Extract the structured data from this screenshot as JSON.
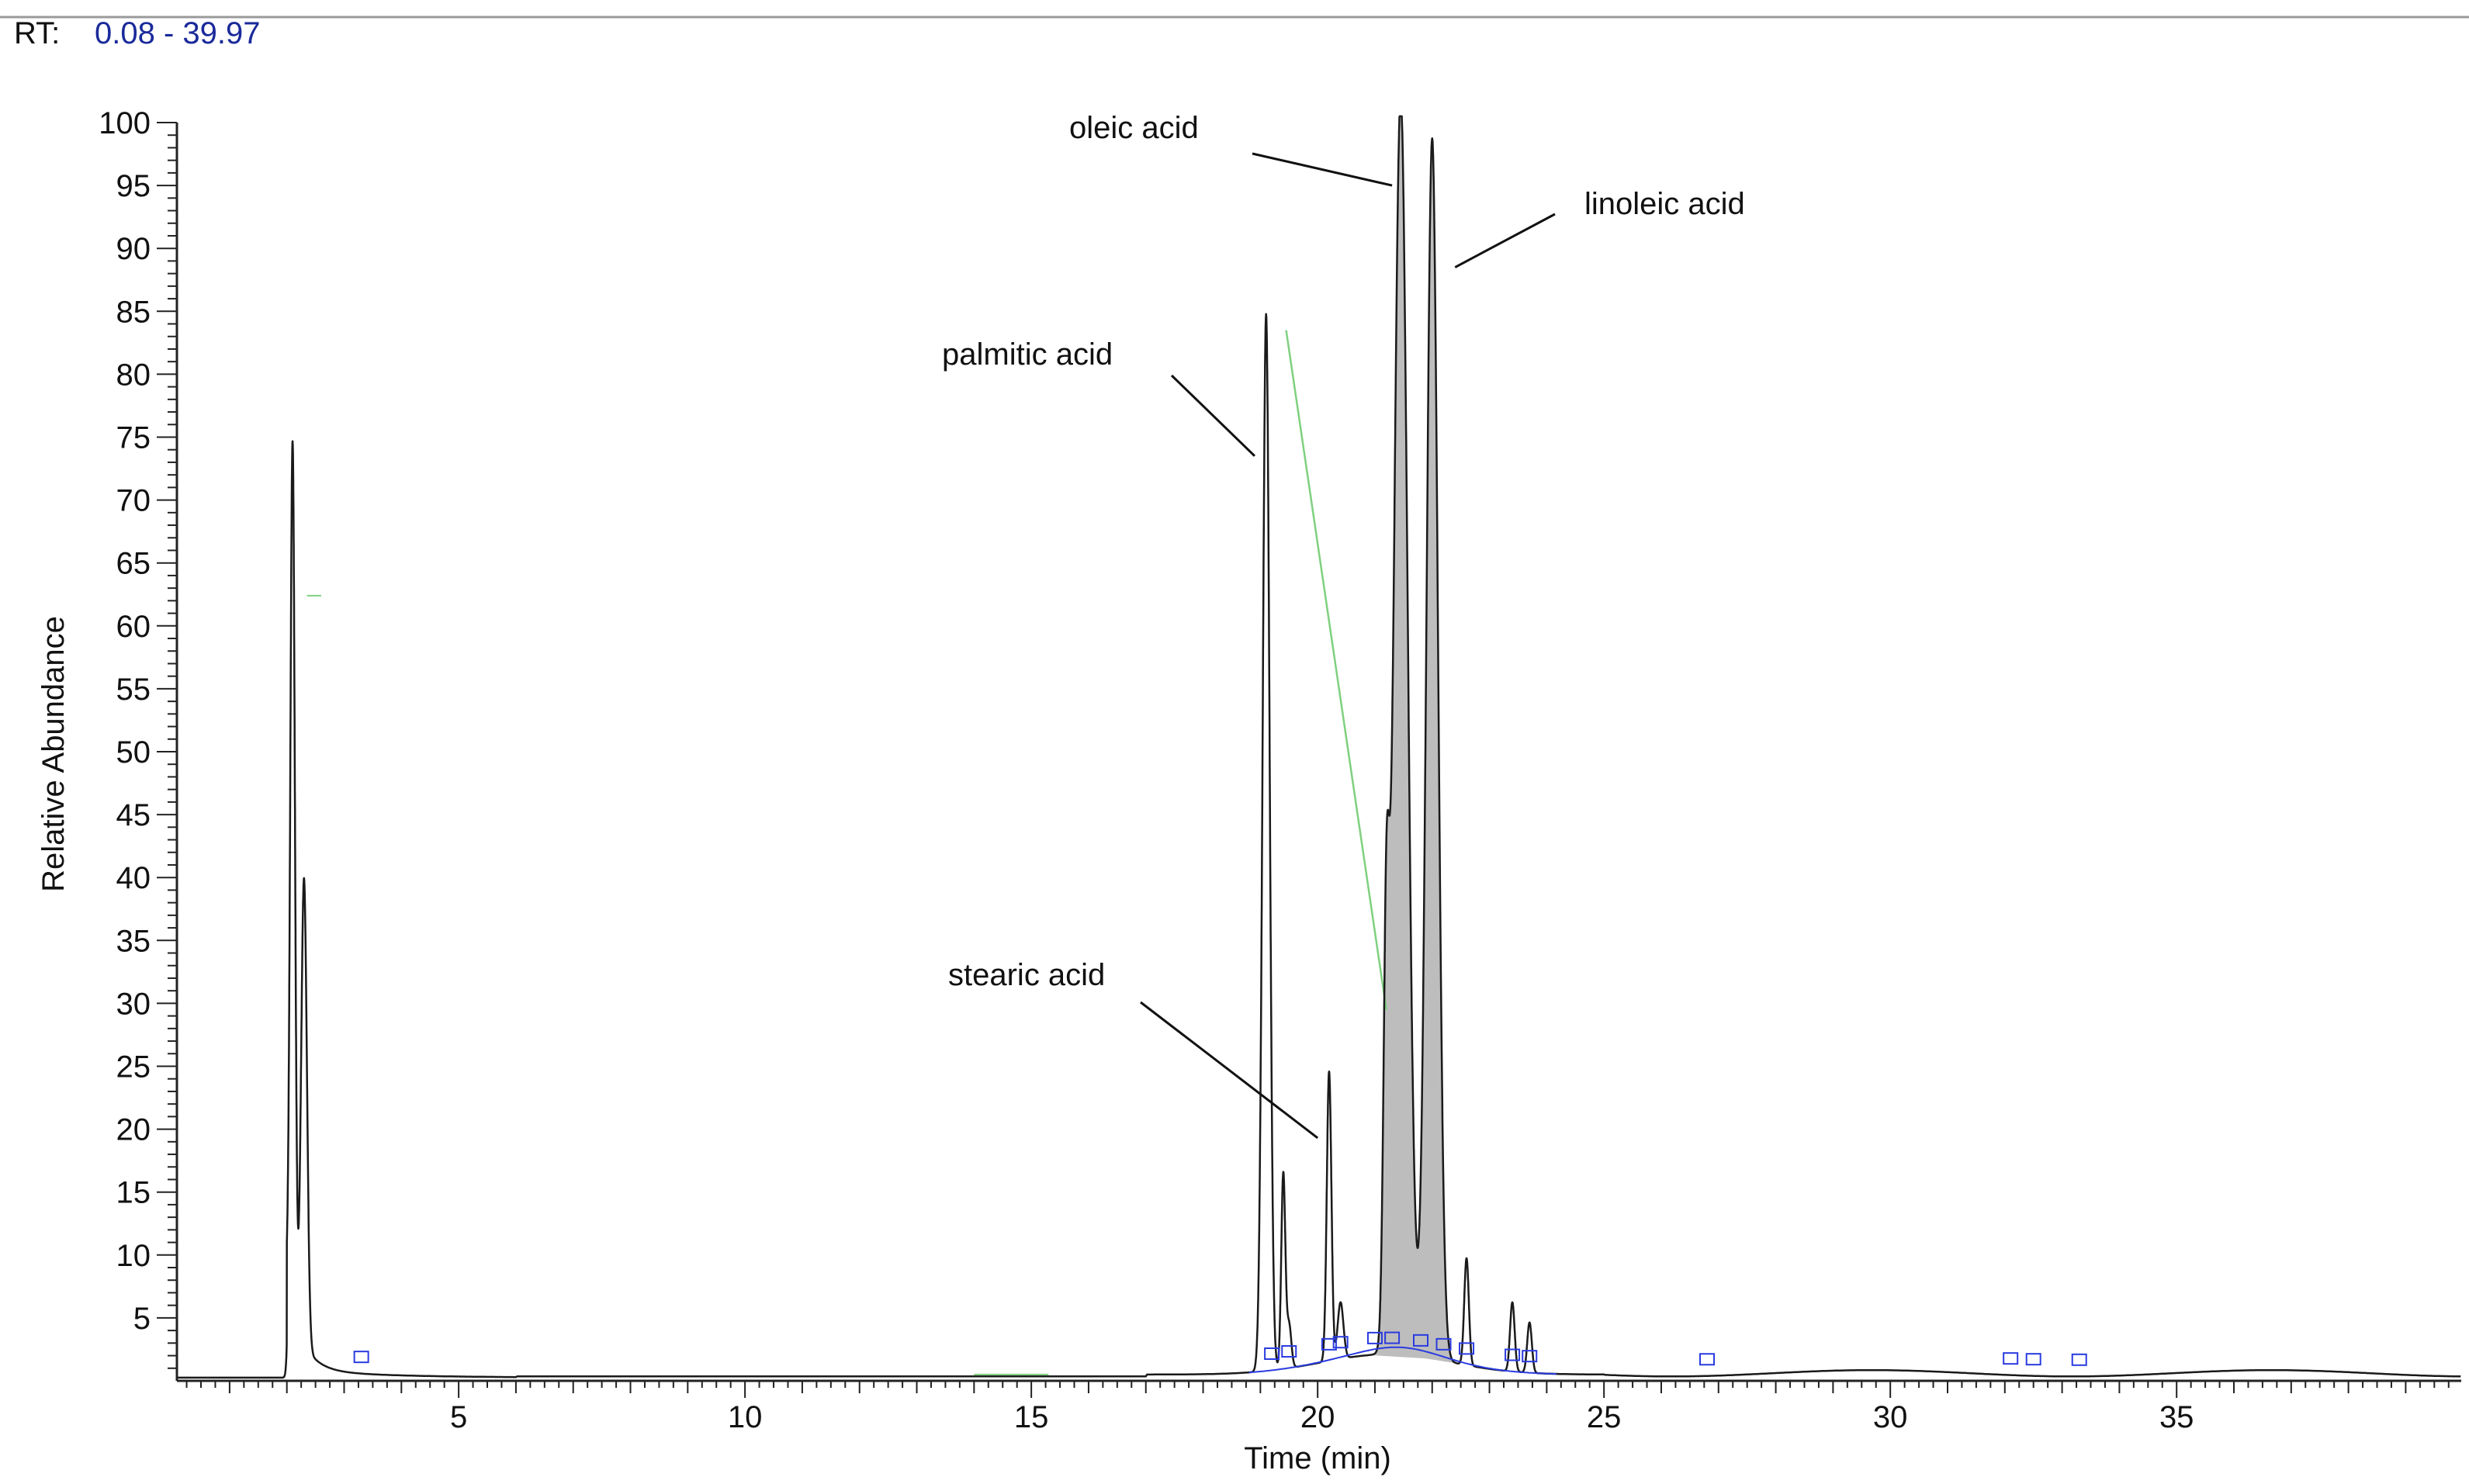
{
  "header": {
    "rt_label": "RT:",
    "rt_range": "0.08 - 39.97"
  },
  "colors": {
    "trace": "#1a1a1a",
    "peak_fill": "#bdbdbd",
    "baseline_marker": "#2a3be0",
    "guide": "#7fd07f",
    "rt_value": "#1a2a9a"
  },
  "chart_data": {
    "type": "line",
    "title": "",
    "xlabel": "Time (min)",
    "ylabel": "Relative Abundance",
    "xlim": [
      0.08,
      39.97
    ],
    "ylim": [
      0,
      100
    ],
    "x_ticks": [
      5,
      10,
      15,
      20,
      25,
      30,
      35
    ],
    "y_ticks": [
      5,
      10,
      15,
      20,
      25,
      30,
      35,
      40,
      45,
      50,
      55,
      60,
      65,
      70,
      75,
      80,
      85,
      90,
      95,
      100
    ],
    "grid": false,
    "peaks": [
      {
        "rt": 2.1,
        "height": 69,
        "width": 0.04
      },
      {
        "rt": 2.3,
        "height": 37,
        "width": 0.05
      },
      {
        "rt": 19.1,
        "height": 84,
        "width": 0.06
      },
      {
        "rt": 19.4,
        "height": 15.5,
        "width": 0.035
      },
      {
        "rt": 19.5,
        "height": 3.5,
        "width": 0.04
      },
      {
        "rt": 20.2,
        "height": 23,
        "width": 0.04
      },
      {
        "rt": 20.4,
        "height": 4.5,
        "width": 0.05
      },
      {
        "rt": 21.2,
        "height": 29.5,
        "width": 0.05
      },
      {
        "rt": 21.45,
        "height": 100,
        "width": 0.12,
        "filled": true
      },
      {
        "rt": 22.0,
        "height": 97,
        "width": 0.1,
        "filled": true
      },
      {
        "rt": 22.6,
        "height": 8.5,
        "width": 0.04
      },
      {
        "rt": 23.4,
        "height": 5.5,
        "width": 0.04
      },
      {
        "rt": 23.7,
        "height": 4,
        "width": 0.04
      }
    ],
    "baseline_markers_rt": [
      19.2,
      19.5,
      20.2,
      20.4,
      21.0,
      21.3,
      21.8,
      22.2,
      22.6,
      23.4,
      23.7,
      3.3,
      26.8,
      32.1,
      32.5,
      33.3
    ],
    "annotations": [
      {
        "text": "oleic acid",
        "target_x": 21.3,
        "target_y": 95
      },
      {
        "text": "linoleic acid",
        "target_x": 22.4,
        "target_y": 88.5
      },
      {
        "text": "palmitic acid",
        "target_x": 18.9,
        "target_y": 73.5
      },
      {
        "text": "stearic acid",
        "target_x": 20.0,
        "target_y": 19.3
      }
    ]
  }
}
